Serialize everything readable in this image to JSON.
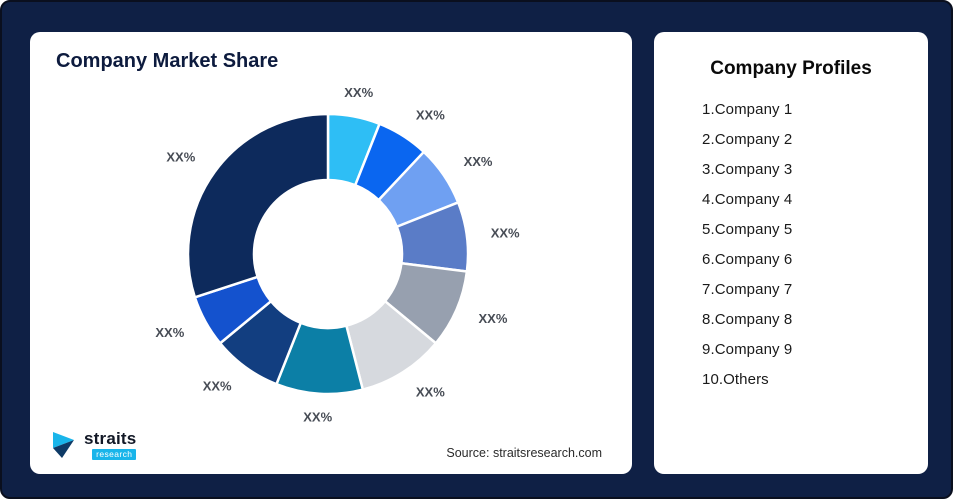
{
  "left_card": {
    "title": "Company Market Share",
    "source": "Source: straitsresearch.com"
  },
  "logo": {
    "brand": "straits",
    "sub": "research"
  },
  "right_card": {
    "title": "Company Profiles",
    "items": [
      "1.Company 1",
      "2.Company 2",
      "3.Company 3",
      "4.Company 4",
      "5.Company 5",
      "6.Company 6",
      "7.Company 7",
      "8.Company 8",
      "9.Company 9",
      "10.Others"
    ]
  },
  "chart_data": {
    "type": "pie",
    "donut": true,
    "title": "Company Market Share",
    "legend_position": "none",
    "labels": [
      "Company 1",
      "Company 2",
      "Company 3",
      "Company 4",
      "Company 5",
      "Company 6",
      "Company 7",
      "Company 8",
      "Company 9",
      "Others"
    ],
    "slice_labels": [
      "XX%",
      "XX%",
      "XX%",
      "XX%",
      "XX%",
      "XX%",
      "XX%",
      "XX%",
      "XX%",
      "XX%"
    ],
    "values": [
      6,
      6,
      7,
      8,
      9,
      10,
      10,
      8,
      6,
      30
    ],
    "colors": [
      "#2EBEF5",
      "#0A66F0",
      "#6FA0F2",
      "#5A7CC7",
      "#97A0AF",
      "#D6D9DE",
      "#0C7FA6",
      "#123E80",
      "#1452CE",
      "#0D2A5C"
    ],
    "source": "Source: straitsresearch.com"
  }
}
